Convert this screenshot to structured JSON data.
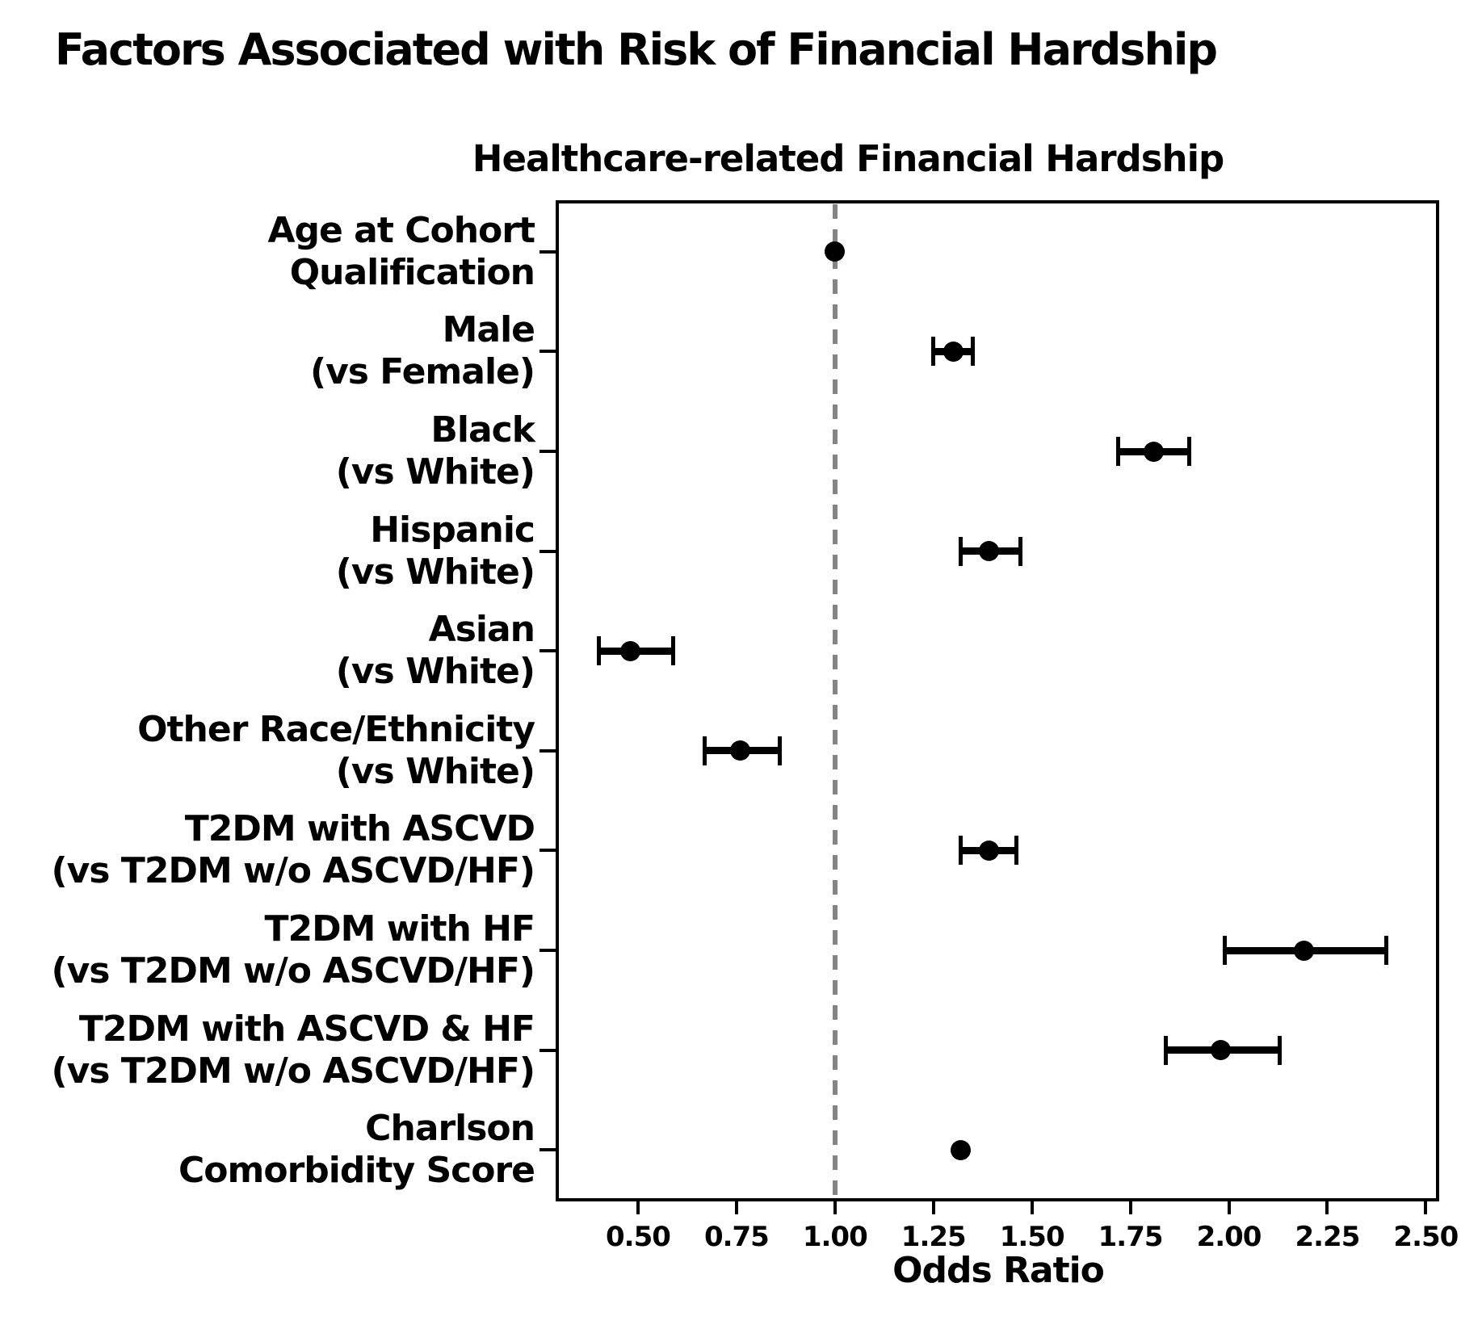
{
  "chart_data": {
    "type": "scatter",
    "subtype": "forest-plot",
    "title": "Factors Associated with Risk of Financial Hardship",
    "axes_title": "Healthcare-related Financial Hardship",
    "xlabel": "Odds Ratio",
    "xlim": [
      0.295,
      2.53
    ],
    "x_ticks": [
      0.5,
      0.75,
      1.0,
      1.25,
      1.5,
      1.75,
      2.0,
      2.25,
      2.5
    ],
    "x_tick_labels": [
      "0.50",
      "0.75",
      "1.00",
      "1.25",
      "1.50",
      "1.75",
      "2.00",
      "2.25",
      "2.50"
    ],
    "grid": false,
    "legend": null,
    "reference_line": {
      "x": 1.0,
      "style": "dashed",
      "color": "#848484"
    },
    "marker_color": "#000000",
    "rows": [
      {
        "label_lines": [
          "Age at Cohort",
          "Qualification"
        ],
        "or": 1.0,
        "ci_low": null,
        "ci_high": null
      },
      {
        "label_lines": [
          "Male",
          "(vs Female)"
        ],
        "or": 1.3,
        "ci_low": 1.25,
        "ci_high": 1.35
      },
      {
        "label_lines": [
          "Black",
          "(vs White)"
        ],
        "or": 1.81,
        "ci_low": 1.72,
        "ci_high": 1.9
      },
      {
        "label_lines": [
          "Hispanic",
          "(vs White)"
        ],
        "or": 1.39,
        "ci_low": 1.32,
        "ci_high": 1.47
      },
      {
        "label_lines": [
          "Asian",
          "(vs White)"
        ],
        "or": 0.48,
        "ci_low": 0.4,
        "ci_high": 0.59
      },
      {
        "label_lines": [
          "Other Race/Ethnicity",
          "(vs White)"
        ],
        "or": 0.76,
        "ci_low": 0.67,
        "ci_high": 0.86
      },
      {
        "label_lines": [
          "T2DM with ASCVD",
          "(vs T2DM w/o ASCVD/HF)"
        ],
        "or": 1.39,
        "ci_low": 1.32,
        "ci_high": 1.46
      },
      {
        "label_lines": [
          "T2DM with HF",
          "(vs T2DM w/o ASCVD/HF)"
        ],
        "or": 2.19,
        "ci_low": 1.99,
        "ci_high": 2.4
      },
      {
        "label_lines": [
          "T2DM with ASCVD & HF",
          "(vs T2DM w/o ASCVD/HF)"
        ],
        "or": 1.98,
        "ci_low": 1.84,
        "ci_high": 2.13
      },
      {
        "label_lines": [
          "Charlson",
          "Comorbidity Score"
        ],
        "or": 1.32,
        "ci_low": null,
        "ci_high": null
      }
    ]
  }
}
